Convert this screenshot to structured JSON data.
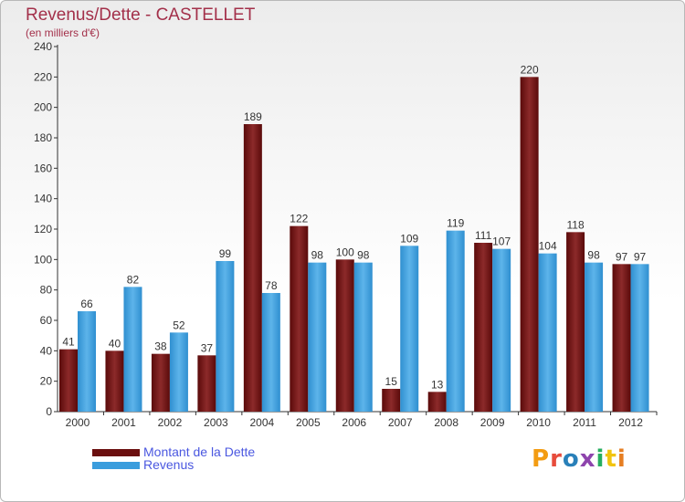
{
  "title": "Revenus/Dette - CASTELLET",
  "subtitle": "(en milliers d'€)",
  "colors": {
    "debt": "#6b0f0f",
    "revenue": "#3a9ddd",
    "title": "#a3304a",
    "legend_text": "#4a57e0"
  },
  "legend": [
    {
      "name": "Montant de la Dette",
      "icon": "dark-red-swatch"
    },
    {
      "name": "Revenus",
      "icon": "blue-swatch"
    }
  ],
  "logo": {
    "text": "Proxiti",
    "colors": [
      "#f39c12",
      "#e74c3c",
      "#2980b9",
      "#8e44ad",
      "#27ae60",
      "#f1c40f",
      "#e67e22"
    ]
  },
  "chart_data": {
    "type": "bar",
    "categories": [
      "2000",
      "2001",
      "2002",
      "2003",
      "2004",
      "2005",
      "2006",
      "2007",
      "2008",
      "2009",
      "2010",
      "2011",
      "2012"
    ],
    "series": [
      {
        "name": "Montant de la Dette",
        "values": [
          41,
          40,
          38,
          37,
          189,
          122,
          100,
          15,
          13,
          111,
          220,
          118,
          97
        ]
      },
      {
        "name": "Revenus",
        "values": [
          66,
          82,
          52,
          99,
          78,
          98,
          98,
          109,
          119,
          107,
          104,
          98,
          97
        ]
      }
    ],
    "yticks": [
      0,
      20,
      40,
      60,
      80,
      100,
      120,
      140,
      160,
      180,
      200,
      220,
      240
    ],
    "ylim": [
      0,
      240
    ],
    "grid": false,
    "legend_position": "bottom-left"
  }
}
